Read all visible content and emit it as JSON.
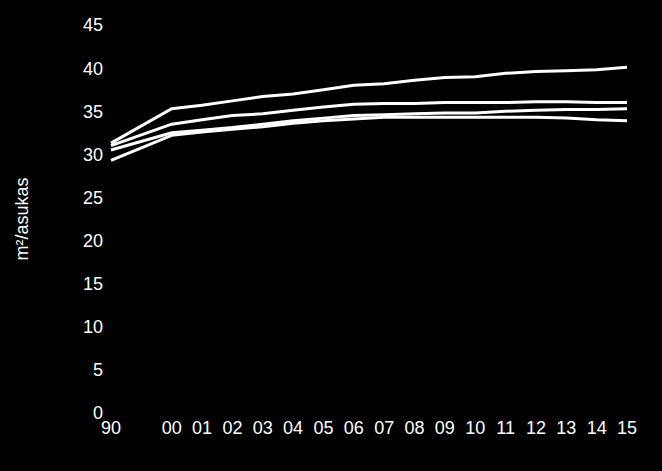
{
  "chart_data": {
    "type": "line",
    "y_label": "m²/asukas",
    "categories": [
      "90",
      null,
      "00",
      "01",
      "02",
      "03",
      "04",
      "05",
      "06",
      "07",
      "08",
      "09",
      "10",
      "11",
      "12",
      "13",
      "14",
      "15"
    ],
    "series": [
      {
        "color": "#ffffff",
        "values": [
          31.3,
          null,
          35.3,
          35.7,
          36.2,
          36.7,
          37.0,
          37.5,
          38.0,
          38.2,
          38.6,
          38.9,
          39.0,
          39.4,
          39.6,
          39.7,
          39.8,
          40.1
        ]
      },
      {
        "color": "#ffffff",
        "values": [
          31.0,
          null,
          33.5,
          34.0,
          34.5,
          34.7,
          35.1,
          35.5,
          35.8,
          35.9,
          35.9,
          36.0,
          36.0,
          36.0,
          36.1,
          36.1,
          36.0,
          36.0
        ]
      },
      {
        "color": "#ffffff",
        "values": [
          30.5,
          null,
          32.5,
          32.8,
          33.1,
          33.5,
          33.9,
          34.2,
          34.5,
          34.6,
          34.7,
          34.8,
          34.8,
          35.0,
          35.1,
          35.2,
          35.2,
          35.3
        ]
      },
      {
        "color": "#ffffff",
        "values": [
          29.3,
          null,
          32.2,
          32.6,
          32.9,
          33.2,
          33.6,
          33.9,
          34.1,
          34.3,
          34.3,
          34.3,
          34.3,
          34.3,
          34.3,
          34.2,
          34.0,
          33.9
        ]
      }
    ],
    "ylim": [
      0,
      45
    ],
    "yticks": [
      0,
      5,
      10,
      15,
      20,
      25,
      30,
      35,
      40,
      45
    ],
    "grid": false
  }
}
